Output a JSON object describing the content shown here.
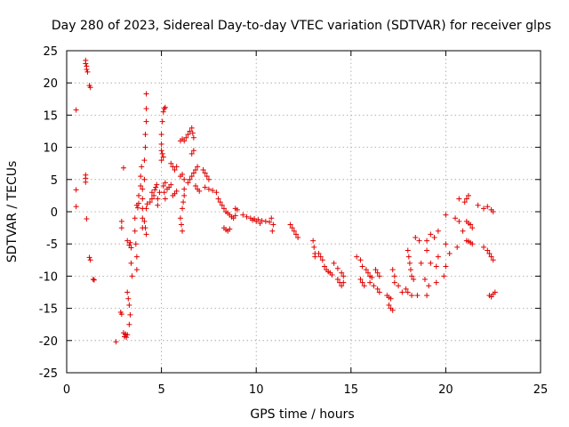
{
  "chart_data": {
    "type": "scatter",
    "title": "Day 280 of 2023, Sidereal Day-to-day VTEC variation (SDTVAR) for receiver glps",
    "xlabel": "GPS time / hours",
    "ylabel": "SDTVAR / TECUs",
    "xlim": [
      0,
      25
    ],
    "ylim": [
      -25,
      25
    ],
    "xticks": [
      0,
      5,
      10,
      15,
      20,
      25
    ],
    "yticks": [
      -25,
      -20,
      -15,
      -10,
      -5,
      0,
      5,
      10,
      15,
      20,
      25
    ],
    "grid": true,
    "marker": "+",
    "color": "#e00000",
    "series": [
      {
        "name": "SDTVAR",
        "points": [
          [
            0.5,
            15.8
          ],
          [
            0.5,
            3.4
          ],
          [
            0.5,
            0.8
          ],
          [
            1.0,
            23.5
          ],
          [
            1.0,
            23.0
          ],
          [
            1.05,
            22.6
          ],
          [
            1.05,
            22.1
          ],
          [
            1.1,
            21.7
          ],
          [
            1.0,
            5.7
          ],
          [
            1.0,
            5.2
          ],
          [
            1.0,
            4.6
          ],
          [
            1.05,
            -1.1
          ],
          [
            1.2,
            19.6
          ],
          [
            1.25,
            19.3
          ],
          [
            1.2,
            -7.1
          ],
          [
            1.25,
            -7.5
          ],
          [
            1.4,
            -10.5
          ],
          [
            1.45,
            -10.6
          ],
          [
            2.6,
            -20.2
          ],
          [
            2.85,
            -15.6
          ],
          [
            2.9,
            -15.9
          ],
          [
            3.0,
            -18.8
          ],
          [
            3.05,
            -19.4
          ],
          [
            3.1,
            -19.0
          ],
          [
            3.15,
            -19.5
          ],
          [
            3.2,
            -19.1
          ],
          [
            2.9,
            -2.5
          ],
          [
            2.9,
            -1.5
          ],
          [
            3.0,
            6.8
          ],
          [
            3.2,
            -4.5
          ],
          [
            3.3,
            -5.2
          ],
          [
            3.35,
            -4.8
          ],
          [
            3.4,
            -5.6
          ],
          [
            3.2,
            -12.5
          ],
          [
            3.25,
            -13.5
          ],
          [
            3.3,
            -14.5
          ],
          [
            3.35,
            -16.0
          ],
          [
            3.3,
            -17.5
          ],
          [
            3.4,
            -8.0
          ],
          [
            3.45,
            -10.0
          ],
          [
            3.6,
            -1.0
          ],
          [
            3.6,
            -3.0
          ],
          [
            3.65,
            -5.0
          ],
          [
            3.7,
            -7.0
          ],
          [
            3.7,
            -9.0
          ],
          [
            3.7,
            1.0
          ],
          [
            3.75,
            0.6
          ],
          [
            3.8,
            1.3
          ],
          [
            3.8,
            2.5
          ],
          [
            3.9,
            4.0
          ],
          [
            3.9,
            5.5
          ],
          [
            3.95,
            7.0
          ],
          [
            4.0,
            3.5
          ],
          [
            4.0,
            2.0
          ],
          [
            4.0,
            0.5
          ],
          [
            4.0,
            -1.0
          ],
          [
            4.0,
            -2.5
          ],
          [
            4.1,
            5.0
          ],
          [
            4.1,
            8.0
          ],
          [
            4.15,
            10.0
          ],
          [
            4.15,
            12.0
          ],
          [
            4.2,
            14.0
          ],
          [
            4.2,
            16.0
          ],
          [
            4.2,
            18.3
          ],
          [
            4.1,
            -1.5
          ],
          [
            4.15,
            -2.5
          ],
          [
            4.2,
            -3.5
          ],
          [
            4.2,
            0.5
          ],
          [
            4.25,
            1.2
          ],
          [
            4.4,
            1.5
          ],
          [
            4.5,
            2.0
          ],
          [
            4.5,
            3.0
          ],
          [
            4.6,
            2.5
          ],
          [
            4.65,
            3.4
          ],
          [
            4.7,
            3.8
          ],
          [
            4.75,
            4.2
          ],
          [
            4.8,
            1.0
          ],
          [
            4.8,
            2.0
          ],
          [
            4.9,
            3.0
          ],
          [
            5.0,
            8.0
          ],
          [
            5.0,
            9.5
          ],
          [
            5.05,
            9.0
          ],
          [
            5.1,
            8.5
          ],
          [
            5.1,
            4.0
          ],
          [
            5.15,
            3.0
          ],
          [
            5.2,
            2.0
          ],
          [
            5.1,
            15.5
          ],
          [
            5.15,
            16.0
          ],
          [
            5.2,
            16.2
          ],
          [
            5.05,
            14.0
          ],
          [
            5.0,
            12.0
          ],
          [
            5.0,
            10.5
          ],
          [
            5.2,
            4.5
          ],
          [
            5.3,
            3.5
          ],
          [
            5.4,
            3.8
          ],
          [
            5.5,
            4.2
          ],
          [
            5.5,
            7.5
          ],
          [
            5.6,
            7.0
          ],
          [
            5.7,
            6.5
          ],
          [
            5.8,
            7.0
          ],
          [
            5.6,
            2.5
          ],
          [
            5.7,
            2.8
          ],
          [
            5.8,
            3.2
          ],
          [
            6.0,
            11.0
          ],
          [
            6.1,
            11.3
          ],
          [
            6.2,
            11.0
          ],
          [
            6.3,
            11.5
          ],
          [
            6.0,
            5.5
          ],
          [
            6.1,
            5.8
          ],
          [
            6.2,
            5.0
          ],
          [
            6.0,
            -1.0
          ],
          [
            6.05,
            -2.0
          ],
          [
            6.1,
            -3.0
          ],
          [
            6.1,
            0.5
          ],
          [
            6.15,
            1.5
          ],
          [
            6.2,
            2.5
          ],
          [
            6.2,
            3.5
          ],
          [
            6.4,
            12.0
          ],
          [
            6.5,
            12.5
          ],
          [
            6.6,
            13.0
          ],
          [
            6.65,
            12.2
          ],
          [
            6.7,
            11.5
          ],
          [
            6.4,
            4.5
          ],
          [
            6.5,
            5.0
          ],
          [
            6.6,
            5.5
          ],
          [
            6.7,
            6.0
          ],
          [
            6.8,
            6.5
          ],
          [
            6.9,
            7.0
          ],
          [
            6.6,
            9.0
          ],
          [
            6.7,
            9.5
          ],
          [
            6.8,
            4.0
          ],
          [
            6.9,
            3.5
          ],
          [
            7.0,
            3.2
          ],
          [
            7.2,
            6.5
          ],
          [
            7.3,
            6.0
          ],
          [
            7.4,
            5.5
          ],
          [
            7.5,
            5.0
          ],
          [
            7.3,
            3.8
          ],
          [
            7.5,
            3.5
          ],
          [
            7.7,
            3.3
          ],
          [
            7.9,
            3.0
          ],
          [
            8.0,
            2.0
          ],
          [
            8.1,
            1.5
          ],
          [
            8.2,
            1.0
          ],
          [
            8.3,
            0.5
          ],
          [
            8.4,
            0.0
          ],
          [
            8.5,
            -0.2
          ],
          [
            8.6,
            -0.5
          ],
          [
            8.7,
            -0.8
          ],
          [
            8.8,
            -1.0
          ],
          [
            8.9,
            -0.6
          ],
          [
            8.3,
            -2.5
          ],
          [
            8.4,
            -2.8
          ],
          [
            8.5,
            -3.0
          ],
          [
            8.6,
            -2.7
          ],
          [
            8.9,
            0.5
          ],
          [
            9.0,
            0.3
          ],
          [
            9.3,
            -0.5
          ],
          [
            9.5,
            -0.8
          ],
          [
            9.7,
            -1.0
          ],
          [
            9.9,
            -1.1
          ],
          [
            10.1,
            -1.2
          ],
          [
            10.3,
            -1.4
          ],
          [
            10.5,
            -1.5
          ],
          [
            10.7,
            -1.6
          ],
          [
            9.8,
            -1.3
          ],
          [
            10.0,
            -1.5
          ],
          [
            10.2,
            -1.8
          ],
          [
            10.8,
            -1.0
          ],
          [
            10.9,
            -2.0
          ],
          [
            10.85,
            -3.0
          ],
          [
            11.8,
            -2.0
          ],
          [
            11.9,
            -2.5
          ],
          [
            12.0,
            -3.0
          ],
          [
            12.1,
            -3.5
          ],
          [
            12.2,
            -4.0
          ],
          [
            13.0,
            -4.5
          ],
          [
            13.05,
            -5.5
          ],
          [
            13.1,
            -6.5
          ],
          [
            13.1,
            -7.0
          ],
          [
            13.3,
            -6.5
          ],
          [
            13.4,
            -7.0
          ],
          [
            13.5,
            -7.5
          ],
          [
            13.6,
            -8.5
          ],
          [
            13.7,
            -9.0
          ],
          [
            13.8,
            -9.3
          ],
          [
            13.9,
            -9.5
          ],
          [
            14.0,
            -9.8
          ],
          [
            14.1,
            -8.0
          ],
          [
            14.3,
            -8.8
          ],
          [
            14.5,
            -9.5
          ],
          [
            14.6,
            -10.0
          ],
          [
            14.3,
            -10.5
          ],
          [
            14.4,
            -11.0
          ],
          [
            14.5,
            -11.5
          ],
          [
            14.6,
            -11.0
          ],
          [
            15.3,
            -7.0
          ],
          [
            15.5,
            -7.5
          ],
          [
            15.6,
            -8.5
          ],
          [
            15.8,
            -9.0
          ],
          [
            15.9,
            -9.5
          ],
          [
            16.0,
            -10.0
          ],
          [
            16.1,
            -10.2
          ],
          [
            15.5,
            -10.5
          ],
          [
            15.6,
            -11.0
          ],
          [
            15.7,
            -11.5
          ],
          [
            16.0,
            -11.0
          ],
          [
            16.2,
            -11.5
          ],
          [
            16.4,
            -12.0
          ],
          [
            16.5,
            -12.5
          ],
          [
            16.3,
            -9.0
          ],
          [
            16.4,
            -9.5
          ],
          [
            16.5,
            -10.0
          ],
          [
            16.9,
            -13.0
          ],
          [
            17.0,
            -13.3
          ],
          [
            17.1,
            -13.5
          ],
          [
            17.0,
            -14.5
          ],
          [
            17.1,
            -15.0
          ],
          [
            17.2,
            -15.3
          ],
          [
            17.3,
            -11.0
          ],
          [
            17.5,
            -11.5
          ],
          [
            17.7,
            -12.5
          ],
          [
            17.2,
            -9.0
          ],
          [
            17.3,
            -10.0
          ],
          [
            18.0,
            -6.0
          ],
          [
            18.05,
            -7.0
          ],
          [
            18.1,
            -8.0
          ],
          [
            18.15,
            -9.0
          ],
          [
            18.2,
            -10.0
          ],
          [
            18.3,
            -10.5
          ],
          [
            17.9,
            -12.0
          ],
          [
            18.0,
            -12.5
          ],
          [
            18.2,
            -13.0
          ],
          [
            18.5,
            -13.0
          ],
          [
            18.4,
            -4.0
          ],
          [
            18.6,
            -4.5
          ],
          [
            18.7,
            -8.0
          ],
          [
            19.0,
            -4.5
          ],
          [
            19.2,
            -3.5
          ],
          [
            19.4,
            -4.0
          ],
          [
            19.0,
            -6.0
          ],
          [
            19.2,
            -8.0
          ],
          [
            19.5,
            -8.5
          ],
          [
            18.9,
            -10.5
          ],
          [
            19.1,
            -11.5
          ],
          [
            19.5,
            -11.0
          ],
          [
            19.0,
            -13.0
          ],
          [
            19.6,
            -3.0
          ],
          [
            19.6,
            -7.0
          ],
          [
            19.9,
            -10.0
          ],
          [
            20.0,
            -0.5
          ],
          [
            20.0,
            -5.0
          ],
          [
            20.0,
            -8.5
          ],
          [
            20.2,
            -6.5
          ],
          [
            20.5,
            -1.0
          ],
          [
            20.7,
            -1.5
          ],
          [
            20.9,
            -3.0
          ],
          [
            20.6,
            -5.5
          ],
          [
            20.7,
            2.0
          ],
          [
            21.0,
            1.5
          ],
          [
            21.1,
            2.0
          ],
          [
            21.2,
            2.5
          ],
          [
            21.1,
            -1.5
          ],
          [
            21.2,
            -1.8
          ],
          [
            21.3,
            -2.0
          ],
          [
            21.4,
            -2.5
          ],
          [
            21.1,
            -4.5
          ],
          [
            21.2,
            -4.6
          ],
          [
            21.3,
            -4.8
          ],
          [
            21.4,
            -5.0
          ],
          [
            21.7,
            1.0
          ],
          [
            22.0,
            0.5
          ],
          [
            22.2,
            0.8
          ],
          [
            22.4,
            0.3
          ],
          [
            22.5,
            0.0
          ],
          [
            22.0,
            -5.5
          ],
          [
            22.2,
            -6.0
          ],
          [
            22.3,
            -6.5
          ],
          [
            22.4,
            -7.0
          ],
          [
            22.5,
            -7.5
          ],
          [
            22.3,
            -13.0
          ],
          [
            22.4,
            -13.2
          ],
          [
            22.5,
            -12.8
          ],
          [
            22.6,
            -12.5
          ]
        ]
      }
    ]
  }
}
